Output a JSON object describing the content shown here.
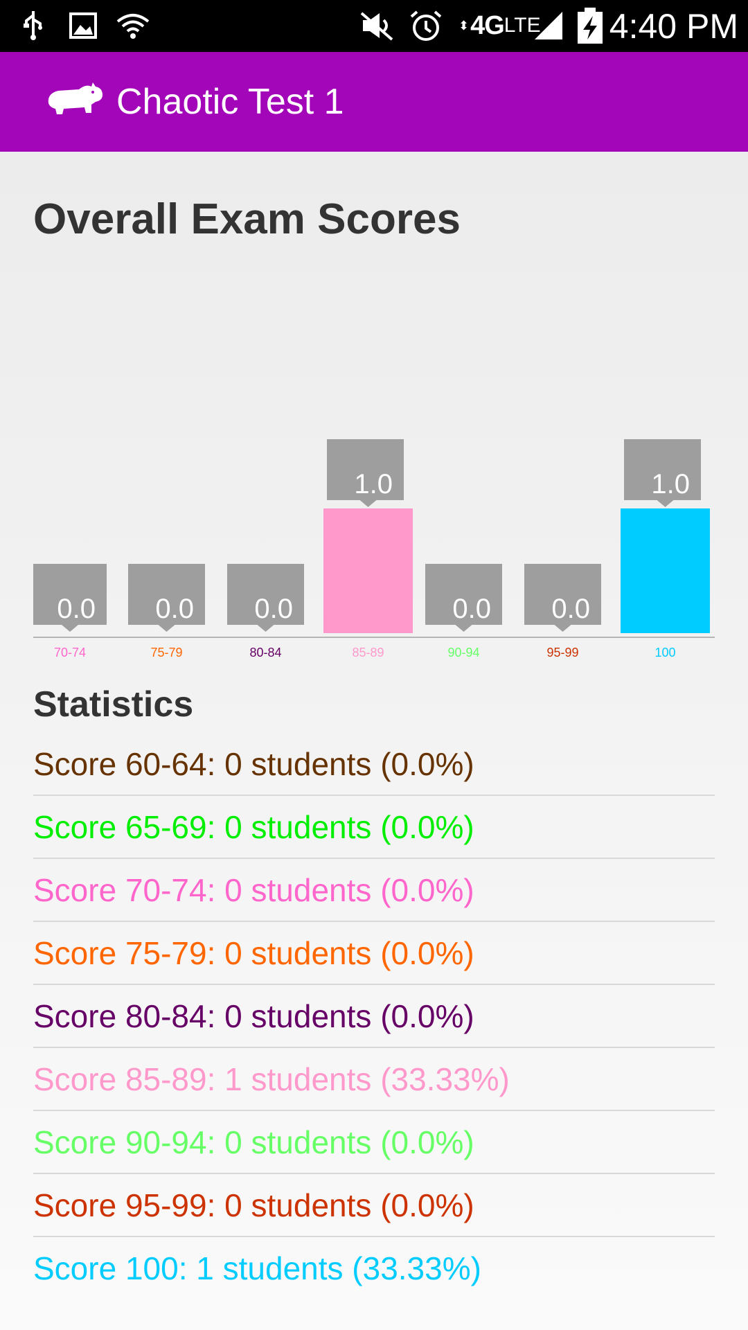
{
  "status_bar": {
    "time": "4:40 PM",
    "network": "4G",
    "network_sub": "LTE",
    "icons": [
      "usb-icon",
      "image-icon",
      "wifi-icon",
      "mute-icon",
      "alarm-icon",
      "signal-icon",
      "battery-charging-icon"
    ]
  },
  "app_bar": {
    "title": "Chaotic Test 1",
    "logo": "hippo-icon",
    "color": "#a305b8"
  },
  "heading": "Overall Exam Scores",
  "chart_data": {
    "type": "bar",
    "categories": [
      "70-74",
      "75-79",
      "80-84",
      "85-89",
      "90-94",
      "95-99",
      "100"
    ],
    "values": [
      0.0,
      0.0,
      0.0,
      1.0,
      0.0,
      0.0,
      1.0
    ],
    "value_labels": [
      "0.0",
      "0.0",
      "0.0",
      "1.0",
      "0.0",
      "0.0",
      "1.0"
    ],
    "colors": [
      "#ff66cc",
      "#ff6600",
      "#660066",
      "#ff99cc",
      "#66ff66",
      "#cc3300",
      "#00ccff"
    ],
    "ylim": [
      0,
      1
    ],
    "title": "",
    "xlabel": "",
    "ylabel": ""
  },
  "statistics": {
    "title": "Statistics",
    "rows": [
      {
        "text": "Score 60-64: 0 students (0.0%)",
        "color": "#663300"
      },
      {
        "text": "Score 65-69: 0 students (0.0%)",
        "color": "#00ee00"
      },
      {
        "text": "Score 70-74: 0 students (0.0%)",
        "color": "#ff66cc"
      },
      {
        "text": "Score 75-79: 0 students (0.0%)",
        "color": "#ff6600"
      },
      {
        "text": "Score 80-84: 0 students (0.0%)",
        "color": "#660066"
      },
      {
        "text": "Score 85-89: 1 students (33.33%)",
        "color": "#ff99cc"
      },
      {
        "text": "Score 90-94: 0 students (0.0%)",
        "color": "#66ff66"
      },
      {
        "text": "Score 95-99: 0 students (0.0%)",
        "color": "#cc3300"
      },
      {
        "text": "Score 100: 1 students (33.33%)",
        "color": "#00ccff"
      }
    ]
  }
}
